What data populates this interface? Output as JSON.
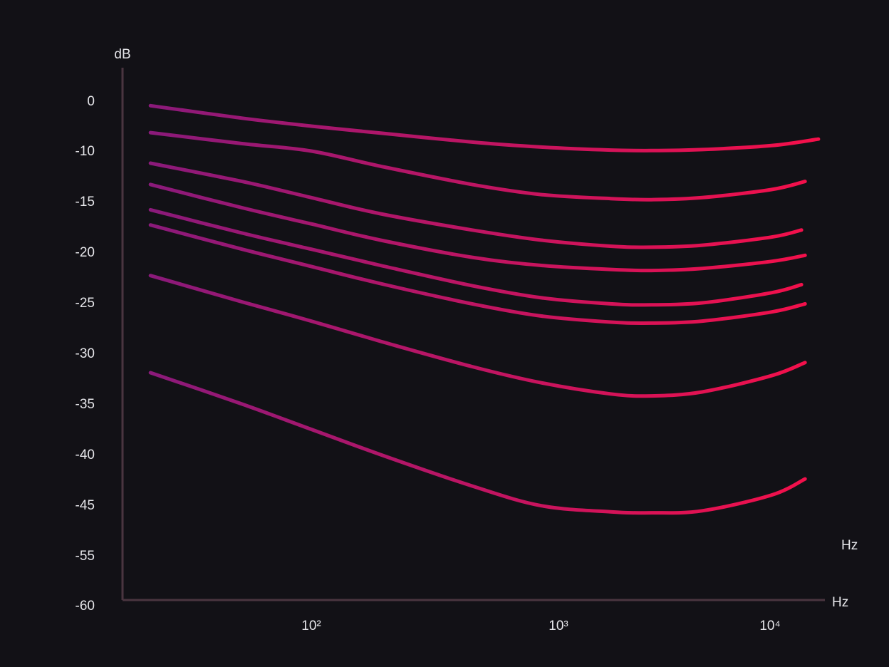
{
  "chart_data": {
    "type": "line",
    "title": "",
    "xlabel": "Hz",
    "ylabel": "dB",
    "x_scale": "log",
    "grid": false,
    "legend": "none",
    "xlim": [
      20,
      16000
    ],
    "y_ticks": [
      {
        "label": "0",
        "value": 0
      },
      {
        "label": "-10",
        "value": -10
      },
      {
        "label": "-15",
        "value": -15
      },
      {
        "label": "-20",
        "value": -20
      },
      {
        "label": "-25",
        "value": -25
      },
      {
        "label": "-30",
        "value": -30
      },
      {
        "label": "-35",
        "value": -35
      },
      {
        "label": "-40",
        "value": -40
      },
      {
        "label": "-45",
        "value": -45
      },
      {
        "label": "-55",
        "value": -55
      },
      {
        "label": "-60",
        "value": -60
      }
    ],
    "x_ticks": [
      {
        "label": "10²",
        "value": 100
      },
      {
        "label": "10³",
        "value": 1000
      },
      {
        "label": "10⁴",
        "value": 10000
      }
    ],
    "extra_label": "Hz",
    "colors": {
      "background": "#121116",
      "axis": "#4a3540",
      "text": "#e6e6ea",
      "curve_start": "#861a7c",
      "curve_end": "#f5104a"
    },
    "series": [
      {
        "x": [
          20,
          50,
          100,
          200,
          500,
          1000,
          2000,
          3000,
          5000,
          10000,
          16000
        ],
        "y": [
          -0.9,
          -3.4,
          -5.0,
          -6.4,
          -8.2,
          -9.2,
          -9.8,
          -9.9,
          -9.7,
          -8.9,
          -7.6
        ]
      },
      {
        "x": [
          20,
          50,
          100,
          200,
          500,
          1000,
          2000,
          3000,
          5000,
          10000,
          14000
        ],
        "y": [
          -6.3,
          -8.5,
          -10.0,
          -11.5,
          -13.3,
          -14.3,
          -14.7,
          -14.8,
          -14.6,
          -13.8,
          -13.0
        ]
      },
      {
        "x": [
          20,
          50,
          100,
          200,
          500,
          1000,
          2000,
          3000,
          5000,
          10000,
          13500
        ],
        "y": [
          -11.2,
          -13.0,
          -14.6,
          -16.2,
          -17.8,
          -18.8,
          -19.4,
          -19.5,
          -19.3,
          -18.5,
          -17.8
        ]
      },
      {
        "x": [
          20,
          50,
          100,
          200,
          500,
          1000,
          2000,
          3000,
          5000,
          10000,
          14000
        ],
        "y": [
          -13.3,
          -15.6,
          -17.2,
          -18.8,
          -20.5,
          -21.3,
          -21.7,
          -21.8,
          -21.6,
          -20.9,
          -20.3
        ]
      },
      {
        "x": [
          20,
          50,
          100,
          200,
          500,
          1000,
          2000,
          3000,
          5000,
          10000,
          13500
        ],
        "y": [
          -15.8,
          -18.1,
          -19.7,
          -21.3,
          -23.3,
          -24.5,
          -25.1,
          -25.2,
          -25.0,
          -24.0,
          -23.2
        ]
      },
      {
        "x": [
          20,
          50,
          100,
          200,
          500,
          1000,
          2000,
          3000,
          5000,
          10000,
          14000
        ],
        "y": [
          -17.3,
          -19.7,
          -21.4,
          -23.1,
          -25.1,
          -26.3,
          -26.9,
          -27.0,
          -26.8,
          -25.9,
          -25.1
        ]
      },
      {
        "x": [
          20,
          50,
          100,
          200,
          500,
          1000,
          2000,
          3000,
          5000,
          10000,
          14000
        ],
        "y": [
          -22.3,
          -24.9,
          -26.8,
          -28.8,
          -31.3,
          -32.9,
          -34.0,
          -34.2,
          -33.8,
          -32.2,
          -30.9
        ]
      },
      {
        "x": [
          20,
          50,
          100,
          200,
          500,
          1000,
          2000,
          3000,
          5000,
          10000,
          14000
        ],
        "y": [
          -31.9,
          -35.0,
          -37.5,
          -40.0,
          -43.1,
          -45.1,
          -46.3,
          -46.5,
          -46.1,
          -44.0,
          -42.4
        ]
      }
    ]
  }
}
